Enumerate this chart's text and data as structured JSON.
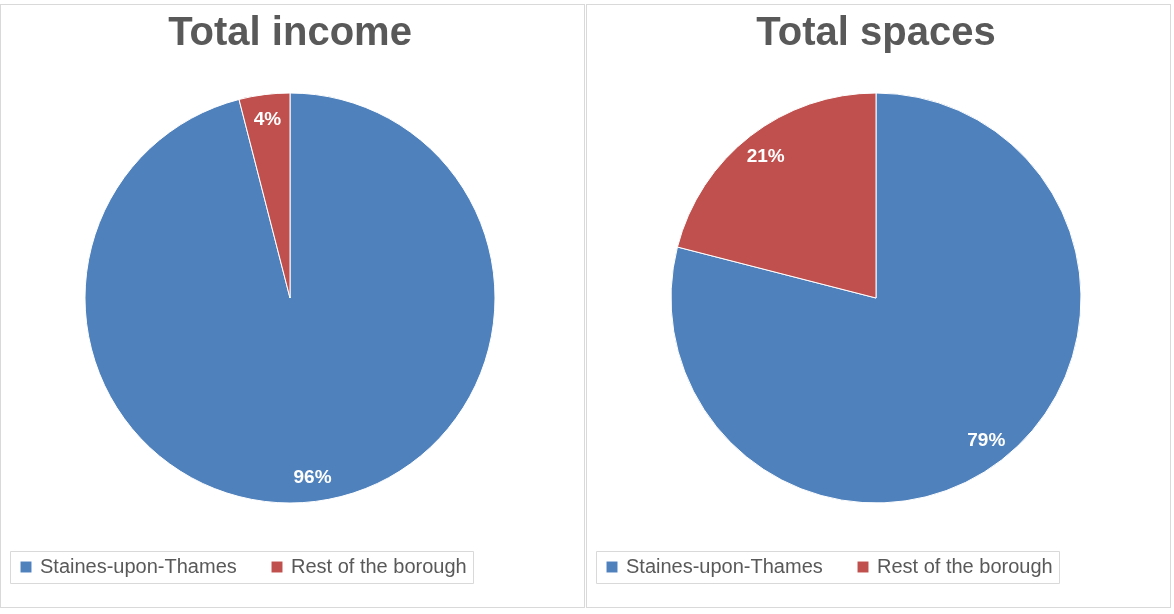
{
  "chart_data": [
    {
      "type": "pie",
      "title": "Total income",
      "categories": [
        "Staines-upon-Thames",
        "Rest of the borough"
      ],
      "values": [
        96,
        4
      ],
      "colors": [
        "#4f81bd",
        "#c0504d"
      ],
      "value_labels": [
        "96%",
        "4%"
      ],
      "legend": "bottom"
    },
    {
      "type": "pie",
      "title": "Total spaces",
      "categories": [
        "Staines-upon-Thames",
        "Rest of the borough"
      ],
      "values": [
        79,
        21
      ],
      "colors": [
        "#4f81bd",
        "#c0504d"
      ],
      "value_labels": [
        "79%",
        "21%"
      ],
      "legend": "bottom"
    }
  ]
}
